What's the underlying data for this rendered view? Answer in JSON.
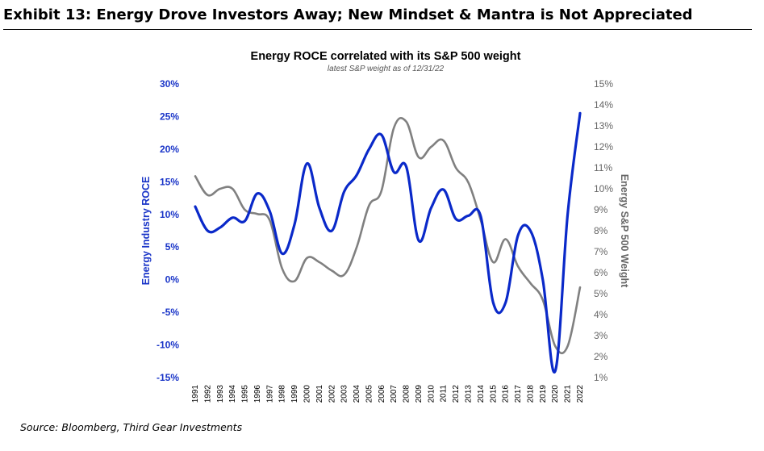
{
  "exhibit_title": "Exhibit 13: Energy Drove Investors Away; New Mindset & Mantra is Not Appreciated",
  "source": "Source: Bloomberg, Third Gear Investments",
  "colors": {
    "roce": "#0a29c9",
    "weight": "#808080"
  },
  "chart_data": {
    "type": "line",
    "title": "Energy ROCE correlated with its S&P 500 weight",
    "subtitle": "latest S&P weight as of 12/31/22",
    "ylabel": "Energy Industry ROCE",
    "y2label": "Energy S&P 500 Weight",
    "ylim": [
      -15,
      30
    ],
    "y2lim": [
      1,
      15
    ],
    "y_ticks": [
      "30%",
      "25%",
      "20%",
      "15%",
      "10%",
      "5%",
      "0%",
      "-5%",
      "-10%",
      "-15%"
    ],
    "y2_ticks": [
      "15%",
      "14%",
      "13%",
      "12%",
      "11%",
      "10%",
      "9%",
      "8%",
      "7%",
      "6%",
      "5%",
      "4%",
      "3%",
      "2%",
      "1%"
    ],
    "categories": [
      "1991",
      "1992",
      "1993",
      "1994",
      "1995",
      "1996",
      "1997",
      "1998",
      "1999",
      "2000",
      "2001",
      "2002",
      "2003",
      "2004",
      "2005",
      "2006",
      "2007",
      "2008",
      "2009",
      "2010",
      "2011",
      "2012",
      "2013",
      "2014",
      "2015",
      "2016",
      "2017",
      "2018",
      "2019",
      "2020",
      "2021",
      "2022"
    ],
    "series": [
      {
        "name": "Energy Industry ROCE",
        "axis": "left",
        "values": [
          11.2,
          7.5,
          8.0,
          9.5,
          9.0,
          13.2,
          10.5,
          4.0,
          8.5,
          17.8,
          11.0,
          7.5,
          13.5,
          16.0,
          20.0,
          22.2,
          16.5,
          17.3,
          6.0,
          11.0,
          13.8,
          9.3,
          9.8,
          9.7,
          -3.5,
          -3.5,
          6.8,
          7.5,
          0.0,
          -14.0,
          10.0,
          25.5
        ]
      },
      {
        "name": "Energy S&P 500 Weight",
        "axis": "right",
        "values": [
          10.6,
          9.7,
          10.0,
          10.0,
          9.0,
          8.8,
          8.5,
          6.2,
          5.6,
          6.7,
          6.5,
          6.1,
          5.9,
          7.2,
          9.2,
          9.9,
          12.9,
          13.2,
          11.5,
          12.0,
          12.3,
          11.0,
          10.3,
          8.5,
          6.5,
          7.6,
          6.3,
          5.5,
          4.7,
          2.5,
          2.5,
          5.3
        ]
      }
    ]
  }
}
